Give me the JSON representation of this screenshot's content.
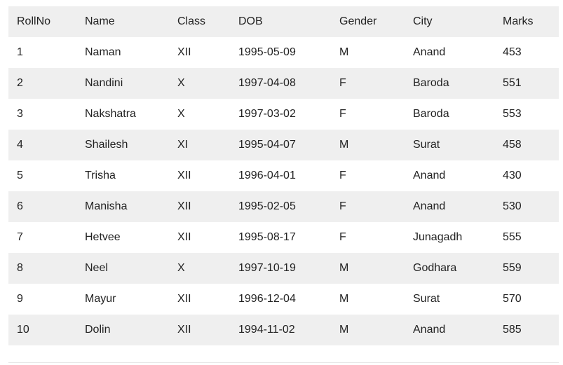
{
  "table": {
    "headers": [
      "RollNo",
      "Name",
      "Class",
      "DOB",
      "Gender",
      "City",
      "Marks"
    ],
    "rows": [
      [
        "1",
        "Naman",
        "XII",
        "1995-05-09",
        "M",
        "Anand",
        "453"
      ],
      [
        "2",
        "Nandini",
        "X",
        "1997-04-08",
        "F",
        "Baroda",
        "551"
      ],
      [
        "3",
        "Nakshatra",
        "X",
        "1997-03-02",
        "F",
        "Baroda",
        "553"
      ],
      [
        "4",
        "Shailesh",
        "XI",
        "1995-04-07",
        "M",
        "Surat",
        "458"
      ],
      [
        "5",
        "Trisha",
        "XII",
        "1996-04-01",
        "F",
        "Anand",
        "430"
      ],
      [
        "6",
        "Manisha",
        "XII",
        "1995-02-05",
        "F",
        "Anand",
        "530"
      ],
      [
        "7",
        "Hetvee",
        "XII",
        "1995-08-17",
        "F",
        "Junagadh",
        "555"
      ],
      [
        "8",
        "Neel",
        "X",
        "1997-10-19",
        "M",
        "Godhara",
        "559"
      ],
      [
        "9",
        "Mayur",
        "XII",
        "1996-12-04",
        "M",
        "Surat",
        "570"
      ],
      [
        "10",
        "Dolin",
        "XII",
        "1994-11-02",
        "M",
        "Anand",
        "585"
      ]
    ]
  },
  "colors": {
    "stripe": "#efefef",
    "text": "#222222"
  }
}
